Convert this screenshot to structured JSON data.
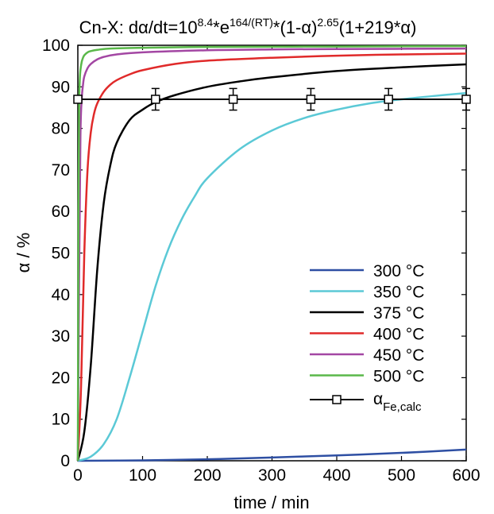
{
  "chart_data": {
    "type": "line",
    "title": {
      "prefix": "Cn-X: d",
      "alpha": "α",
      "mid1": "/dt=10",
      "sup1": "8.4",
      "mid2": "*e",
      "sup2": "164/(RT)",
      "mid3": "*(1-",
      "alpha2": "α",
      "mid4": ")",
      "sup3": "2.65",
      "mid5": "(1+219*",
      "alpha3": "α",
      "end": ")"
    },
    "xlabel": "time / min",
    "ylabel": "α / %",
    "xlim": [
      0,
      600
    ],
    "ylim": [
      0,
      100
    ],
    "xticks": [
      0,
      100,
      200,
      300,
      400,
      500,
      600
    ],
    "yticks": [
      0,
      10,
      20,
      30,
      40,
      50,
      60,
      70,
      80,
      90,
      100
    ],
    "grid": false,
    "legend_position": "bottom-right",
    "series": [
      {
        "name": "300 °C",
        "color": "#2e4fa3",
        "x": [
          0,
          100,
          200,
          300,
          400,
          500,
          600
        ],
        "y": [
          0,
          0.1,
          0.35,
          0.8,
          1.3,
          1.9,
          2.7
        ]
      },
      {
        "name": "350 °C",
        "color": "#5bc9d6",
        "x": [
          0,
          20,
          40,
          60,
          80,
          100,
          120,
          140,
          160,
          180,
          200,
          250,
          300,
          350,
          400,
          450,
          500,
          550,
          600
        ],
        "y": [
          0,
          1,
          4,
          10,
          20,
          31,
          42,
          51,
          58,
          63.5,
          68,
          75,
          79.5,
          82.5,
          84.5,
          86,
          87,
          87.8,
          88.5
        ]
      },
      {
        "name": "375 °C",
        "color": "#000000",
        "x": [
          0,
          10,
          20,
          30,
          40,
          50,
          60,
          80,
          100,
          120,
          150,
          200,
          250,
          300,
          400,
          500,
          600
        ],
        "y": [
          0,
          7,
          23,
          46,
          62,
          71,
          76.5,
          82,
          84.5,
          86.3,
          88,
          90,
          91.3,
          92.3,
          93.8,
          94.7,
          95.4
        ]
      },
      {
        "name": "400 °C",
        "color": "#e02a2a",
        "x": [
          0,
          5,
          10,
          15,
          20,
          25,
          30,
          40,
          50,
          60,
          80,
          100,
          150,
          200,
          300,
          400,
          500,
          600
        ],
        "y": [
          0,
          18,
          50,
          70,
          79,
          83.5,
          86,
          88.8,
          90.5,
          91.6,
          93,
          94,
          95.5,
          96.3,
          97,
          97.5,
          97.8,
          98
        ]
      },
      {
        "name": "450 °C",
        "color": "#a347a3",
        "x": [
          0,
          2,
          4,
          6,
          8,
          10,
          15,
          20,
          30,
          40,
          60,
          100,
          200,
          300,
          400,
          600
        ],
        "y": [
          0,
          45,
          78,
          87,
          90.5,
          92.5,
          94.5,
          95.5,
          96.6,
          97.2,
          97.8,
          98.3,
          98.8,
          99,
          99.1,
          99.2
        ]
      },
      {
        "name": "500 °C",
        "color": "#5ab84a",
        "x": [
          0,
          1,
          2,
          3,
          4,
          6,
          8,
          10,
          15,
          20,
          30,
          50,
          100,
          200,
          400,
          600
        ],
        "y": [
          0,
          60,
          85,
          91.5,
          94,
          96,
          97,
          97.6,
          98.3,
          98.6,
          98.9,
          99.2,
          99.4,
          99.6,
          99.7,
          99.8
        ]
      }
    ],
    "calc_series": {
      "name_base": "α",
      "name_sub": "Fe,calc",
      "color": "#000000",
      "x": [
        0,
        120,
        240,
        360,
        480,
        600
      ],
      "y": [
        87,
        87,
        87,
        87,
        87,
        87
      ],
      "err": [
        0,
        2.6,
        2.6,
        2.6,
        2.6,
        2.6
      ]
    }
  }
}
